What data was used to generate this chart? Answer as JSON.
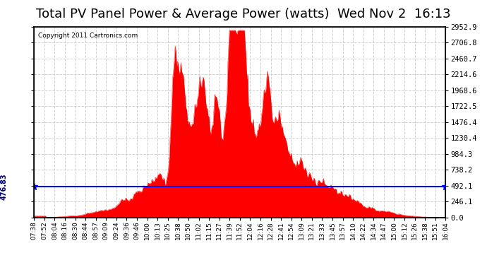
{
  "title": "Total PV Panel Power & Average Power (watts)  Wed Nov 2  16:13",
  "copyright": "Copyright 2011 Cartronics.com",
  "average_value": 476.83,
  "avg_label": "476.83",
  "yticks": [
    0.0,
    246.1,
    492.1,
    738.2,
    984.3,
    1230.4,
    1476.4,
    1722.5,
    1968.6,
    2214.6,
    2460.7,
    2706.8,
    2952.9
  ],
  "ymax": 2952.9,
  "bg_color": "#ffffff",
  "plot_bg_color": "#ffffff",
  "grid_color": "#cccccc",
  "fill_color": "#ff0000",
  "line_color": "#ff0000",
  "avg_line_color": "#0000ff",
  "title_fontsize": 13,
  "xtick_labels": [
    "07:38",
    "07:52",
    "08:04",
    "08:16",
    "08:30",
    "08:44",
    "08:57",
    "09:09",
    "09:24",
    "09:36",
    "09:46",
    "10:00",
    "10:13",
    "10:25",
    "10:38",
    "10:50",
    "11:02",
    "11:15",
    "11:27",
    "11:39",
    "11:52",
    "12:04",
    "12:16",
    "12:28",
    "12:41",
    "12:54",
    "13:09",
    "13:21",
    "13:33",
    "13:45",
    "13:57",
    "14:10",
    "14:22",
    "14:34",
    "14:47",
    "15:00",
    "15:12",
    "15:26",
    "15:38",
    "15:51",
    "16:04"
  ],
  "num_points": 500,
  "seed": 42
}
